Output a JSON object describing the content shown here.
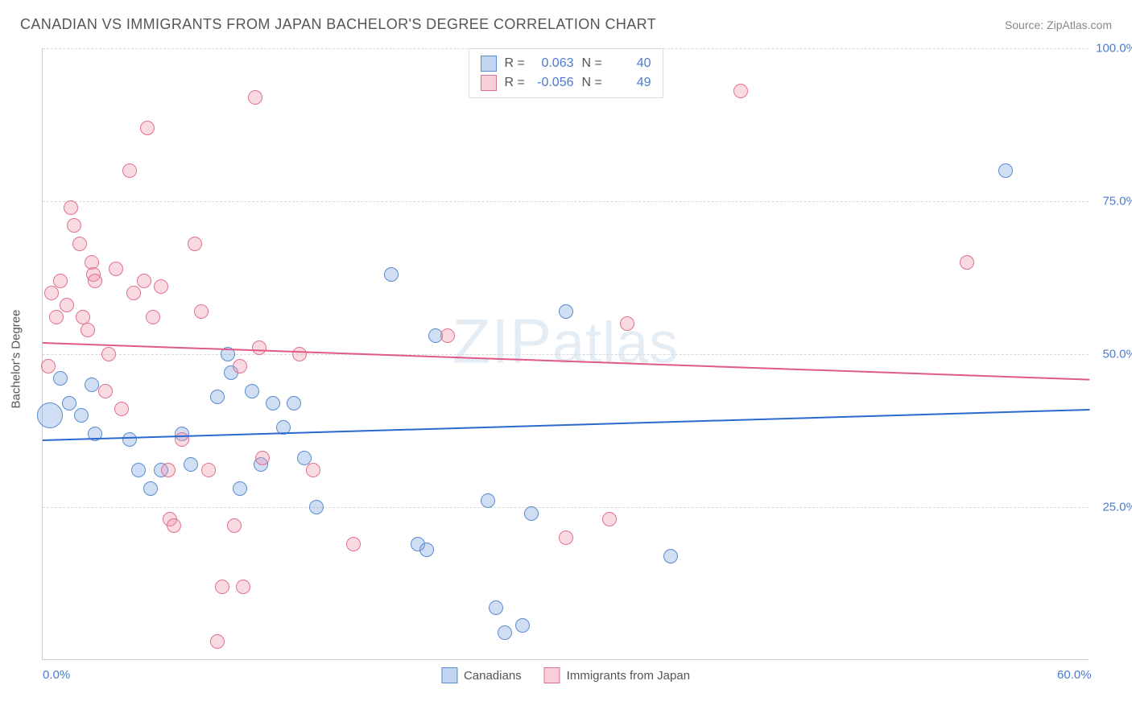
{
  "title": "CANADIAN VS IMMIGRANTS FROM JAPAN BACHELOR'S DEGREE CORRELATION CHART",
  "source": "Source: ZipAtlas.com",
  "watermark": "ZIPatlas",
  "chart": {
    "type": "scatter",
    "y_label": "Bachelor's Degree",
    "xlim": [
      0,
      60
    ],
    "ylim": [
      0,
      100
    ],
    "xticks": [
      {
        "v": 0,
        "label": "0.0%"
      },
      {
        "v": 60,
        "label": "60.0%"
      }
    ],
    "yticks": [
      {
        "v": 25,
        "label": "25.0%"
      },
      {
        "v": 50,
        "label": "50.0%"
      },
      {
        "v": 75,
        "label": "75.0%"
      },
      {
        "v": 100,
        "label": "100.0%"
      }
    ],
    "grid_color": "#d8d8d8",
    "background_color": "#ffffff",
    "axis_color": "#cccccc",
    "tick_label_color": "#4a7bd0",
    "marker_radius": 9,
    "marker_radius_large": 16,
    "series": [
      {
        "name": "Canadians",
        "legend_label": "Canadians",
        "color_fill": "rgba(120,160,220,0.35)",
        "color_stroke": "#5a8cd0",
        "r_value": "0.063",
        "n_value": "40",
        "trend": {
          "y_at_x0": 36,
          "y_at_x60": 41,
          "color": "#2a6ad0"
        },
        "points": [
          {
            "x": 0.4,
            "y": 40,
            "r": 16
          },
          {
            "x": 1.0,
            "y": 46
          },
          {
            "x": 1.5,
            "y": 42
          },
          {
            "x": 2.2,
            "y": 40
          },
          {
            "x": 2.8,
            "y": 45
          },
          {
            "x": 3.0,
            "y": 37
          },
          {
            "x": 5.0,
            "y": 36
          },
          {
            "x": 5.5,
            "y": 31
          },
          {
            "x": 6.2,
            "y": 28
          },
          {
            "x": 6.8,
            "y": 31
          },
          {
            "x": 8.0,
            "y": 37
          },
          {
            "x": 8.5,
            "y": 32
          },
          {
            "x": 10.0,
            "y": 43
          },
          {
            "x": 10.6,
            "y": 50
          },
          {
            "x": 10.8,
            "y": 47
          },
          {
            "x": 11.3,
            "y": 28
          },
          {
            "x": 12.0,
            "y": 44
          },
          {
            "x": 12.5,
            "y": 32
          },
          {
            "x": 13.2,
            "y": 42
          },
          {
            "x": 13.8,
            "y": 38
          },
          {
            "x": 14.4,
            "y": 42
          },
          {
            "x": 15.0,
            "y": 33
          },
          {
            "x": 15.7,
            "y": 25
          },
          {
            "x": 20.0,
            "y": 63
          },
          {
            "x": 21.5,
            "y": 19
          },
          {
            "x": 22.0,
            "y": 18
          },
          {
            "x": 22.5,
            "y": 53
          },
          {
            "x": 25.5,
            "y": 26
          },
          {
            "x": 26.0,
            "y": 8.5
          },
          {
            "x": 26.5,
            "y": 4.5
          },
          {
            "x": 27.5,
            "y": 5.6
          },
          {
            "x": 28.0,
            "y": 24
          },
          {
            "x": 30.0,
            "y": 57
          },
          {
            "x": 36.0,
            "y": 17
          },
          {
            "x": 55.2,
            "y": 80
          }
        ]
      },
      {
        "name": "Immigrants from Japan",
        "legend_label": "Immigrants from Japan",
        "color_fill": "rgba(240,150,170,0.35)",
        "color_stroke": "#e07090",
        "r_value": "-0.056",
        "n_value": "49",
        "trend": {
          "y_at_x0": 52,
          "y_at_x60": 46,
          "color": "#e05a85"
        },
        "points": [
          {
            "x": 0.3,
            "y": 48
          },
          {
            "x": 0.5,
            "y": 60
          },
          {
            "x": 0.8,
            "y": 56
          },
          {
            "x": 1.0,
            "y": 62
          },
          {
            "x": 1.4,
            "y": 58
          },
          {
            "x": 1.6,
            "y": 74
          },
          {
            "x": 1.8,
            "y": 71
          },
          {
            "x": 2.1,
            "y": 68
          },
          {
            "x": 2.3,
            "y": 56
          },
          {
            "x": 2.6,
            "y": 54
          },
          {
            "x": 2.8,
            "y": 65
          },
          {
            "x": 2.9,
            "y": 63
          },
          {
            "x": 3.0,
            "y": 62
          },
          {
            "x": 3.6,
            "y": 44
          },
          {
            "x": 3.8,
            "y": 50
          },
          {
            "x": 4.2,
            "y": 64
          },
          {
            "x": 4.5,
            "y": 41
          },
          {
            "x": 5.0,
            "y": 80
          },
          {
            "x": 5.2,
            "y": 60
          },
          {
            "x": 5.8,
            "y": 62
          },
          {
            "x": 6.0,
            "y": 87
          },
          {
            "x": 6.3,
            "y": 56
          },
          {
            "x": 6.8,
            "y": 61
          },
          {
            "x": 7.2,
            "y": 31
          },
          {
            "x": 7.3,
            "y": 23
          },
          {
            "x": 7.5,
            "y": 22
          },
          {
            "x": 8.0,
            "y": 36
          },
          {
            "x": 8.7,
            "y": 68
          },
          {
            "x": 9.1,
            "y": 57
          },
          {
            "x": 9.5,
            "y": 31
          },
          {
            "x": 10.0,
            "y": 3
          },
          {
            "x": 10.3,
            "y": 12
          },
          {
            "x": 11.0,
            "y": 22
          },
          {
            "x": 11.3,
            "y": 48
          },
          {
            "x": 11.5,
            "y": 12
          },
          {
            "x": 12.2,
            "y": 92
          },
          {
            "x": 12.4,
            "y": 51
          },
          {
            "x": 12.6,
            "y": 33
          },
          {
            "x": 14.7,
            "y": 50
          },
          {
            "x": 15.5,
            "y": 31
          },
          {
            "x": 17.8,
            "y": 19
          },
          {
            "x": 23.2,
            "y": 53
          },
          {
            "x": 30.0,
            "y": 20
          },
          {
            "x": 32.5,
            "y": 23
          },
          {
            "x": 33.5,
            "y": 55
          },
          {
            "x": 40.0,
            "y": 93
          },
          {
            "x": 53.0,
            "y": 65
          }
        ]
      }
    ],
    "legend_top": {
      "labels": {
        "r": "R =",
        "n": "N ="
      }
    },
    "legend_bottom": {
      "items": [
        "Canadians",
        "Immigrants from Japan"
      ]
    }
  }
}
